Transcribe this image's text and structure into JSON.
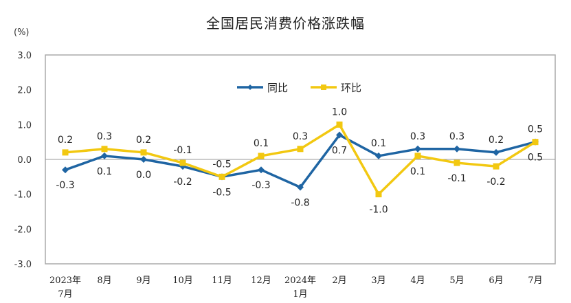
{
  "chart_data": {
    "type": "line",
    "title": "全国居民消费价格涨跌幅",
    "ylabel": "(%)",
    "xlabel": "",
    "ylim": [
      -3.0,
      3.0
    ],
    "yticks": [
      "3.0",
      "2.0",
      "1.0",
      "0.0",
      "-1.0",
      "-2.0",
      "-3.0"
    ],
    "grid": false,
    "legend_position": "top-center",
    "categories": [
      [
        "2023年",
        "7月"
      ],
      [
        "8月"
      ],
      [
        "9月"
      ],
      [
        "10月"
      ],
      [
        "11月"
      ],
      [
        "12月"
      ],
      [
        "2024年",
        "1月"
      ],
      [
        "2月"
      ],
      [
        "3月"
      ],
      [
        "4月"
      ],
      [
        "5月"
      ],
      [
        "6月"
      ],
      [
        "7月"
      ]
    ],
    "series": [
      {
        "name": "同比",
        "color": "#1f65a3",
        "marker": "diamond",
        "values": [
          -0.3,
          0.1,
          0.0,
          -0.2,
          -0.5,
          -0.3,
          -0.8,
          0.7,
          0.1,
          0.3,
          0.3,
          0.2,
          0.5
        ],
        "labels": [
          "-0.3",
          "0.1",
          "0.0",
          "-0.2",
          "-0.5",
          "-0.3",
          "-0.8",
          "0.7",
          "0.1",
          "0.3",
          "0.3",
          "0.2",
          "0.5"
        ]
      },
      {
        "name": "环比",
        "color": "#f2c811",
        "marker": "square",
        "values": [
          0.2,
          0.3,
          0.2,
          -0.1,
          -0.5,
          0.1,
          0.3,
          1.0,
          -1.0,
          0.1,
          -0.1,
          -0.2,
          0.5
        ],
        "labels": [
          "0.2",
          "0.3",
          "0.2",
          "-0.1",
          "-0.5",
          "0.1",
          "0.3",
          "1.0",
          "-1.0",
          "0.1",
          "-0.1",
          "-0.2",
          "0.5"
        ]
      }
    ]
  }
}
